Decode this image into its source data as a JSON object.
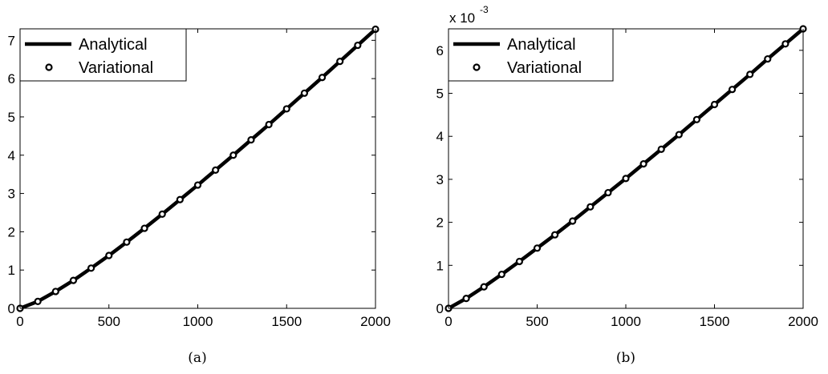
{
  "chart_data": [
    {
      "type": "line",
      "caption": "(a)",
      "x_tick_labels": [
        "0",
        "500",
        "1000",
        "1500",
        "2000"
      ],
      "y_tick_labels": [
        "0",
        "1",
        "2",
        "3",
        "4",
        "5",
        "6",
        "7"
      ],
      "xlim": [
        0,
        2000
      ],
      "ylim": [
        0,
        7.3
      ],
      "grid": false,
      "legend_position": "top-left",
      "series": [
        {
          "name": "Analytical",
          "style": "line",
          "color": "#000000",
          "x": [
            0,
            100,
            200,
            300,
            400,
            500,
            600,
            700,
            800,
            900,
            1000,
            1100,
            1200,
            1300,
            1400,
            1500,
            1600,
            1700,
            1800,
            1900,
            2000
          ],
          "y": [
            0,
            0.18,
            0.44,
            0.73,
            1.05,
            1.38,
            1.73,
            2.09,
            2.46,
            2.84,
            3.22,
            3.61,
            4.0,
            4.4,
            4.8,
            5.21,
            5.62,
            6.03,
            6.45,
            6.87,
            7.29
          ]
        },
        {
          "name": "Variational",
          "style": "markers",
          "color": "#000000",
          "x": [
            0,
            100,
            200,
            300,
            400,
            500,
            600,
            700,
            800,
            900,
            1000,
            1100,
            1200,
            1300,
            1400,
            1500,
            1600,
            1700,
            1800,
            1900,
            2000
          ],
          "y": [
            0,
            0.18,
            0.44,
            0.73,
            1.05,
            1.38,
            1.73,
            2.09,
            2.46,
            2.84,
            3.22,
            3.61,
            4.0,
            4.4,
            4.8,
            5.21,
            5.62,
            6.03,
            6.45,
            6.87,
            7.29
          ]
        }
      ]
    },
    {
      "type": "line",
      "caption": "(b)",
      "y_multiplier_base": "x 10",
      "y_multiplier_exponent": "-3",
      "x_tick_labels": [
        "0",
        "500",
        "1000",
        "1500",
        "2000"
      ],
      "y_tick_labels": [
        "0",
        "1",
        "2",
        "3",
        "4",
        "5",
        "6"
      ],
      "xlim": [
        0,
        2000
      ],
      "ylim": [
        0,
        6.5
      ],
      "grid": false,
      "legend_position": "top-left",
      "series": [
        {
          "name": "Analytical",
          "style": "line",
          "color": "#000000",
          "x": [
            0,
            100,
            200,
            300,
            400,
            500,
            600,
            700,
            800,
            900,
            1000,
            1100,
            1200,
            1300,
            1400,
            1500,
            1600,
            1700,
            1800,
            1900,
            2000
          ],
          "y": [
            0,
            0.23,
            0.5,
            0.79,
            1.09,
            1.4,
            1.71,
            2.03,
            2.36,
            2.69,
            3.02,
            3.36,
            3.7,
            4.04,
            4.39,
            4.74,
            5.09,
            5.44,
            5.8,
            6.15,
            6.5
          ]
        },
        {
          "name": "Variational",
          "style": "markers",
          "color": "#000000",
          "x": [
            0,
            100,
            200,
            300,
            400,
            500,
            600,
            700,
            800,
            900,
            1000,
            1100,
            1200,
            1300,
            1400,
            1500,
            1600,
            1700,
            1800,
            1900,
            2000
          ],
          "y": [
            0,
            0.23,
            0.5,
            0.79,
            1.09,
            1.4,
            1.71,
            2.03,
            2.36,
            2.69,
            3.02,
            3.36,
            3.7,
            4.04,
            4.39,
            4.74,
            5.09,
            5.44,
            5.8,
            6.15,
            6.5
          ]
        }
      ]
    }
  ]
}
